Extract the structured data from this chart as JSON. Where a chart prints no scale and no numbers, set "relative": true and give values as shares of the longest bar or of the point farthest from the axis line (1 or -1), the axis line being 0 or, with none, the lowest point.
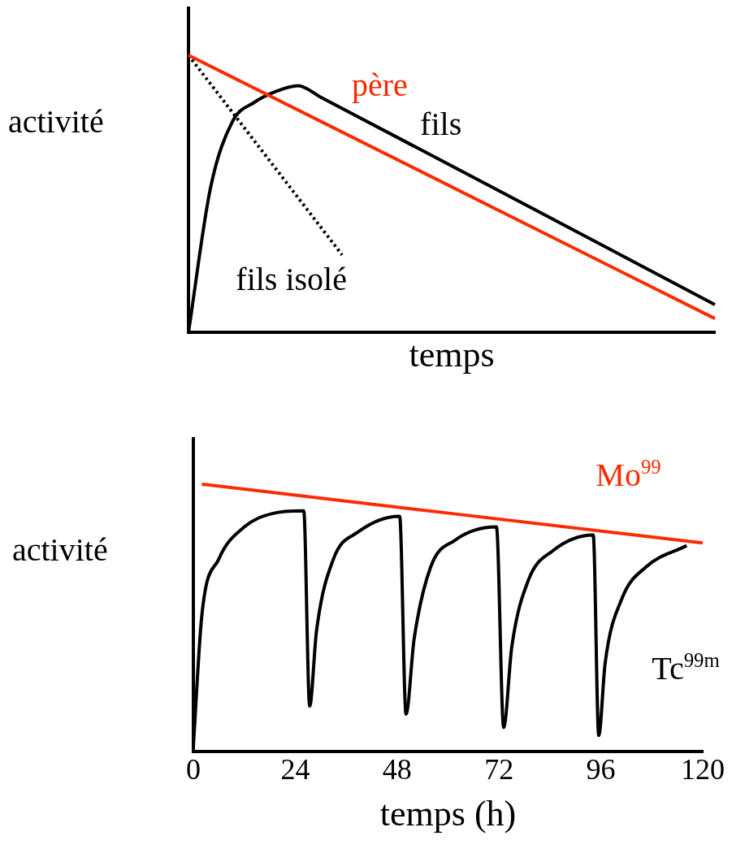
{
  "chart_data": [
    {
      "type": "line",
      "relative": true,
      "xlabel": "temps",
      "ylabel": "activité",
      "tick_labels": false,
      "grid": false,
      "legend": false,
      "categories": [
        null,
        null,
        null,
        null,
        null,
        null,
        null,
        null,
        null,
        null,
        null,
        null,
        null,
        null,
        null,
        null,
        null,
        null,
        null,
        null,
        null,
        null,
        null,
        null,
        null
      ],
      "series": [
        {
          "name": "père",
          "color": "#ff2a00",
          "values": [
            1,
            null,
            null,
            null,
            null,
            null,
            null,
            null,
            null,
            null,
            null,
            null,
            null,
            null,
            null,
            null,
            null,
            null,
            null,
            null,
            null,
            null,
            null,
            null,
            0.05
          ]
        },
        {
          "name": "fils",
          "color": "#000000",
          "values": [
            0,
            0.52,
            0.76,
            0.83,
            0.87,
            0.89,
            0.85,
            null,
            null,
            null,
            null,
            null,
            null,
            null,
            null,
            null,
            null,
            null,
            null,
            null,
            null,
            null,
            null,
            null,
            0.1
          ]
        },
        {
          "name": "fils isolé",
          "color": "#000000",
          "line_style": "dotted",
          "values": [
            1,
            null,
            null,
            null,
            null,
            null,
            null,
            0.28,
            null,
            null,
            null,
            null,
            null,
            null,
            null,
            null,
            null,
            null,
            null,
            null,
            null,
            null,
            null,
            null,
            null
          ]
        }
      ]
    },
    {
      "type": "line",
      "relative": true,
      "xlabel": "temps (h)",
      "ylabel": "activité",
      "tick_labels": "x",
      "grid": false,
      "legend": false,
      "xlim": [
        0,
        120
      ],
      "xticks": [
        0,
        24,
        48,
        72,
        96,
        120
      ],
      "series": [
        {
          "name": "Mo$^{99}$",
          "color": "#ff2a00",
          "x": [
            2,
            120
          ],
          "values": [
            1,
            0.78
          ]
        },
        {
          "name": "Tc$^{99m}$",
          "color": "#000000",
          "x": [
            0,
            2,
            6,
            12,
            18.6,
            26,
            27.4,
            29,
            33,
            38.7,
            48.6,
            50.1,
            52,
            55.9,
            61.6,
            71.4,
            73.1,
            75,
            78.9,
            84.6,
            94.2,
            95.5,
            97,
            100.9,
            106.6,
            116.2
          ],
          "values": [
            0.02,
            0.51,
            0.72,
            0.84,
            0.89,
            0.9,
            0.17,
            0.45,
            0.72,
            0.82,
            0.88,
            0.14,
            0.42,
            0.69,
            0.79,
            0.84,
            0.09,
            0.39,
            0.64,
            0.75,
            0.81,
            0.06,
            0.33,
            0.57,
            0.69,
            0.77
          ]
        }
      ]
    }
  ]
}
